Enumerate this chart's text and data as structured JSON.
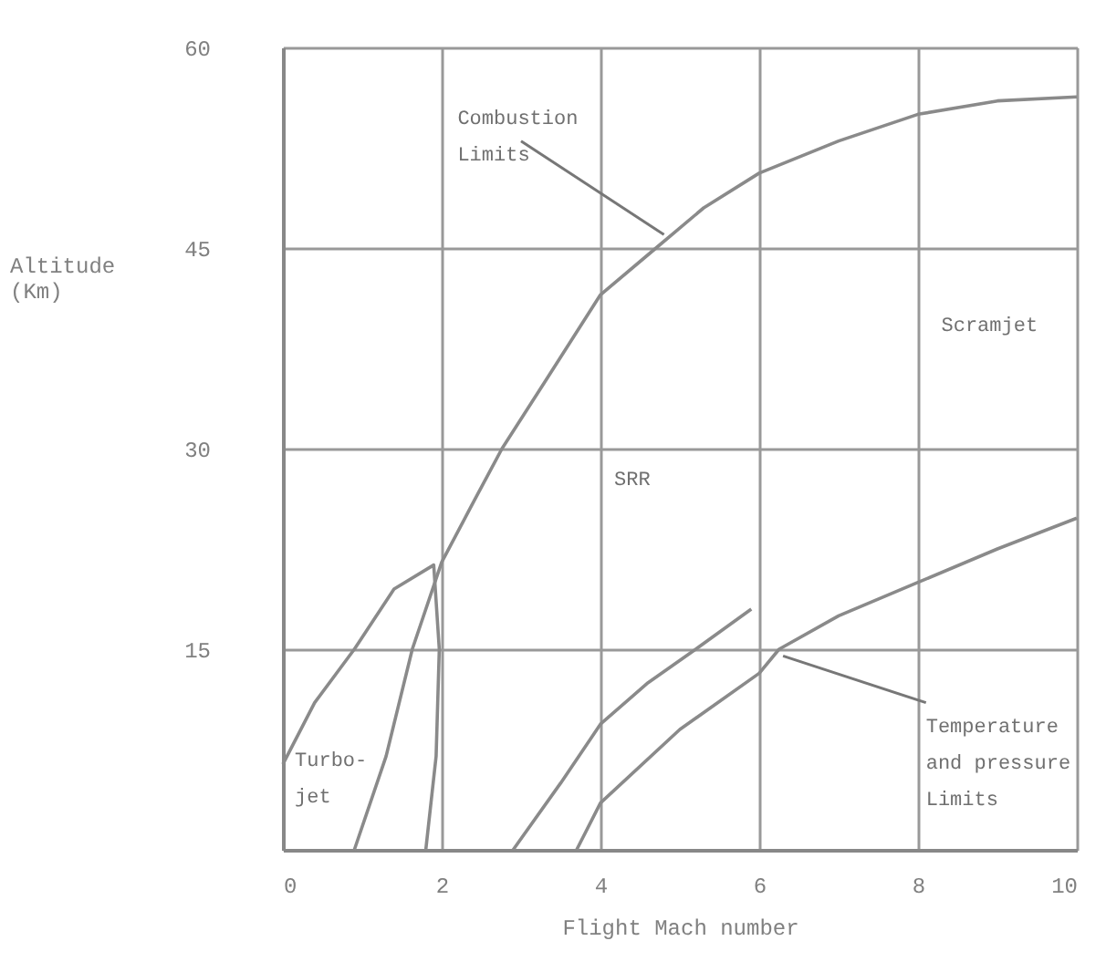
{
  "chart_data": {
    "type": "line",
    "xlabel": "Flight Mach number",
    "ylabel": "Altitude (Km)",
    "xlim": [
      0,
      10
    ],
    "xticks": [
      0,
      2,
      4,
      6,
      8,
      10
    ],
    "ylim": [
      0,
      60
    ],
    "yticks": [
      15,
      30,
      45,
      60
    ],
    "grid": true,
    "marker": "none",
    "line_style": "solid",
    "series": [
      {
        "color": "#8a8a8a",
        "x": [
          0.9,
          1.3,
          1.63,
          2.0,
          2.4,
          2.76,
          3.3,
          4.0,
          4.7,
          5.3,
          6.0,
          7.0,
          8.0,
          9.0,
          10.0
        ],
        "values": [
          0,
          7,
          15,
          21.5,
          26,
          30,
          35,
          41.5,
          45,
          48,
          50.6,
          53,
          55,
          56,
          56.3
        ]
      },
      {
        "color": "#8a8a8a",
        "x": [
          0,
          0.4,
          0.9,
          1.4,
          1.9,
          1.97,
          1.93,
          1.8
        ],
        "values": [
          6.4,
          11,
          15,
          19.5,
          21.3,
          15,
          7,
          0
        ]
      },
      {
        "color": "#8a8a8a",
        "x": [
          2.9,
          3.5,
          4.0,
          4.6,
          5.2,
          5.9
        ],
        "values": [
          0,
          5,
          9.4,
          12.5,
          15,
          18
        ]
      },
      {
        "color": "#8a8a8a",
        "x": [
          3.7,
          4.0,
          5.0,
          6.0,
          6.25,
          7.0,
          8.0,
          9.0,
          10.0
        ],
        "values": [
          0,
          3.5,
          9,
          13.2,
          15,
          17.5,
          20,
          22.5,
          24.8
        ]
      }
    ],
    "annotations": [
      {
        "text": "Combustion Limits",
        "x": 4.8,
        "y": 46
      },
      {
        "text": "Temperature and pressure Limits",
        "x": 6.3,
        "y": 14.5
      },
      "Turbo-jet",
      "SRR",
      "Scramjet"
    ]
  }
}
